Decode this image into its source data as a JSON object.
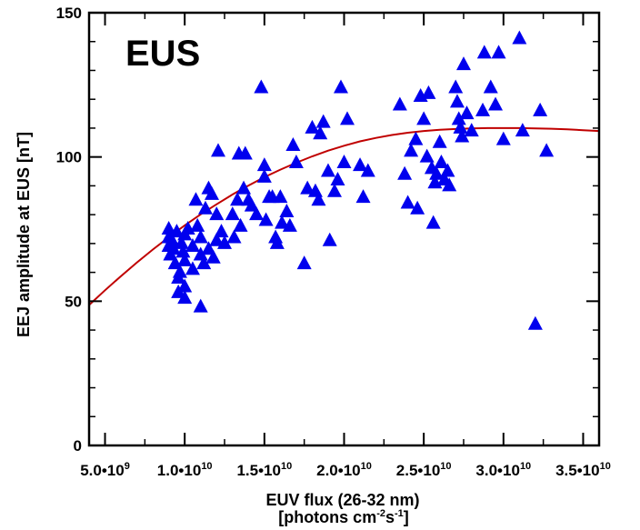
{
  "chart_data": {
    "type": "scatter",
    "title": "",
    "panel_label": "EUS",
    "xlabel": "EUV flux (26-32 nm)",
    "xlabel_line2": "[photons cm⁻²s⁻¹]",
    "xlabel_line2_parts": {
      "pre": "[photons cm",
      "sup1": "-2",
      "mid": "s",
      "sup2": "-1",
      "post": "]"
    },
    "ylabel": "EEJ amplitude at EUS [nT]",
    "xlim": [
      4000000000.0,
      36000000000.0
    ],
    "ylim": [
      0,
      150
    ],
    "grid": false,
    "legend": "none",
    "x_ticks": [
      {
        "value": 5000000000.0,
        "mant": "5.0•",
        "base": "10",
        "exp": "9"
      },
      {
        "value": 10000000000.0,
        "mant": "1.0•",
        "base": "10",
        "exp": "10"
      },
      {
        "value": 15000000000.0,
        "mant": "1.5•",
        "base": "10",
        "exp": "10"
      },
      {
        "value": 20000000000.0,
        "mant": "2.0•",
        "base": "10",
        "exp": "10"
      },
      {
        "value": 25000000000.0,
        "mant": "2.5•",
        "base": "10",
        "exp": "10"
      },
      {
        "value": 30000000000.0,
        "mant": "3.0•",
        "base": "10",
        "exp": "10"
      },
      {
        "value": 35000000000.0,
        "mant": "3.5•",
        "base": "10",
        "exp": "10"
      }
    ],
    "y_ticks": [
      {
        "value": 0,
        "label": "0"
      },
      {
        "value": 50,
        "label": "50"
      },
      {
        "value": 100,
        "label": "100"
      },
      {
        "value": 150,
        "label": "150"
      }
    ],
    "marker_color": "#0000ee",
    "fit_color": "#c00000",
    "series": [
      {
        "kind": "scatter",
        "marker": "triangle",
        "points": [
          [
            9000000000.0,
            75
          ],
          [
            9000000000.0,
            72
          ],
          [
            9000000000.0,
            69
          ],
          [
            9100000000.0,
            66
          ],
          [
            9200000000.0,
            71
          ],
          [
            9300000000.0,
            68
          ],
          [
            9400000000.0,
            63
          ],
          [
            9500000000.0,
            74
          ],
          [
            9600000000.0,
            58
          ],
          [
            9600000000.0,
            53
          ],
          [
            9700000000.0,
            60
          ],
          [
            9800000000.0,
            70
          ],
          [
            9900000000.0,
            67
          ],
          [
            10000000000.0,
            73
          ],
          [
            10000000000.0,
            64
          ],
          [
            10000000000.0,
            55
          ],
          [
            10000000000.0,
            51
          ],
          [
            10200000000.0,
            75
          ],
          [
            10500000000.0,
            69
          ],
          [
            10500000000.0,
            61
          ],
          [
            10700000000.0,
            85
          ],
          [
            10800000000.0,
            76
          ],
          [
            11000000000.0,
            72
          ],
          [
            11000000000.0,
            66
          ],
          [
            11000000000.0,
            48
          ],
          [
            11200000000.0,
            63
          ],
          [
            11300000000.0,
            82
          ],
          [
            11500000000.0,
            89
          ],
          [
            11500000000.0,
            68
          ],
          [
            11700000000.0,
            87
          ],
          [
            11800000000.0,
            65
          ],
          [
            12000000000.0,
            80
          ],
          [
            12000000000.0,
            71
          ],
          [
            12100000000.0,
            102
          ],
          [
            12300000000.0,
            74
          ],
          [
            12500000000.0,
            70
          ],
          [
            13000000000.0,
            80
          ],
          [
            13100000000.0,
            72
          ],
          [
            13300000000.0,
            85
          ],
          [
            13400000000.0,
            101
          ],
          [
            13500000000.0,
            76
          ],
          [
            13700000000.0,
            89
          ],
          [
            13800000000.0,
            101
          ],
          [
            14000000000.0,
            85
          ],
          [
            14200000000.0,
            83
          ],
          [
            14500000000.0,
            80
          ],
          [
            14800000000.0,
            124
          ],
          [
            15000000000.0,
            97
          ],
          [
            15000000000.0,
            93
          ],
          [
            15100000000.0,
            78
          ],
          [
            15300000000.0,
            86
          ],
          [
            15500000000.0,
            86
          ],
          [
            15700000000.0,
            72
          ],
          [
            15800000000.0,
            70
          ],
          [
            16000000000.0,
            86
          ],
          [
            16100000000.0,
            77
          ],
          [
            16400000000.0,
            81
          ],
          [
            16600000000.0,
            76
          ],
          [
            16800000000.0,
            104
          ],
          [
            17000000000.0,
            98
          ],
          [
            17500000000.0,
            63
          ],
          [
            17700000000.0,
            89
          ],
          [
            18000000000.0,
            110
          ],
          [
            18200000000.0,
            88
          ],
          [
            18400000000.0,
            85
          ],
          [
            18500000000.0,
            108
          ],
          [
            18700000000.0,
            112
          ],
          [
            19000000000.0,
            95
          ],
          [
            19100000000.0,
            71
          ],
          [
            19400000000.0,
            88
          ],
          [
            19600000000.0,
            92
          ],
          [
            19800000000.0,
            124
          ],
          [
            20000000000.0,
            98
          ],
          [
            20200000000.0,
            113
          ],
          [
            21000000000.0,
            97
          ],
          [
            21200000000.0,
            86
          ],
          [
            21500000000.0,
            95
          ],
          [
            23500000000.0,
            118
          ],
          [
            23800000000.0,
            94
          ],
          [
            24000000000.0,
            84
          ],
          [
            24200000000.0,
            102
          ],
          [
            24500000000.0,
            106
          ],
          [
            24600000000.0,
            82
          ],
          [
            24800000000.0,
            121
          ],
          [
            25000000000.0,
            113
          ],
          [
            25200000000.0,
            100
          ],
          [
            25300000000.0,
            122
          ],
          [
            25500000000.0,
            96
          ],
          [
            25600000000.0,
            77
          ],
          [
            25700000000.0,
            91
          ],
          [
            25800000000.0,
            94
          ],
          [
            26000000000.0,
            105
          ],
          [
            26100000000.0,
            98
          ],
          [
            26300000000.0,
            92
          ],
          [
            26500000000.0,
            95
          ],
          [
            26600000000.0,
            90
          ],
          [
            27000000000.0,
            124
          ],
          [
            27100000000.0,
            119
          ],
          [
            27200000000.0,
            113
          ],
          [
            27300000000.0,
            110
          ],
          [
            27400000000.0,
            107
          ],
          [
            27500000000.0,
            132
          ],
          [
            27700000000.0,
            115
          ],
          [
            28000000000.0,
            109
          ],
          [
            28700000000.0,
            116
          ],
          [
            28800000000.0,
            136
          ],
          [
            29200000000.0,
            124
          ],
          [
            29500000000.0,
            118
          ],
          [
            29700000000.0,
            136
          ],
          [
            30000000000.0,
            106
          ],
          [
            31000000000.0,
            141
          ],
          [
            31200000000.0,
            109
          ],
          [
            32000000000.0,
            42
          ],
          [
            32300000000.0,
            116
          ],
          [
            32700000000.0,
            102
          ]
        ]
      },
      {
        "kind": "fit-curve",
        "points": [
          [
            4000000000.0,
            48.7
          ],
          [
            5000000000.0,
            53.8
          ],
          [
            6000000000.0,
            58.7
          ],
          [
            7000000000.0,
            63.4
          ],
          [
            8000000000.0,
            67.9
          ],
          [
            9000000000.0,
            72.2
          ],
          [
            10000000000.0,
            76.3
          ],
          [
            11000000000.0,
            80.1
          ],
          [
            12000000000.0,
            83.6
          ],
          [
            13000000000.0,
            87.0
          ],
          [
            14000000000.0,
            90.1
          ],
          [
            15000000000.0,
            93.0
          ],
          [
            16000000000.0,
            95.6
          ],
          [
            17000000000.0,
            98.0
          ],
          [
            18000000000.0,
            100.2
          ],
          [
            19000000000.0,
            102.2
          ],
          [
            20000000000.0,
            103.9
          ],
          [
            21000000000.0,
            105.4
          ],
          [
            22000000000.0,
            106.6
          ],
          [
            23000000000.0,
            107.6
          ],
          [
            24000000000.0,
            108.4
          ],
          [
            25000000000.0,
            109.0
          ],
          [
            26000000000.0,
            109.4
          ],
          [
            27000000000.0,
            109.7
          ],
          [
            28000000000.0,
            109.9
          ],
          [
            29000000000.0,
            110.0
          ],
          [
            30000000000.0,
            110.0
          ],
          [
            31000000000.0,
            110.0
          ],
          [
            32000000000.0,
            109.9
          ],
          [
            33000000000.0,
            109.8
          ],
          [
            34000000000.0,
            109.6
          ],
          [
            35000000000.0,
            109.3
          ],
          [
            36000000000.0,
            109.0
          ]
        ]
      }
    ]
  }
}
